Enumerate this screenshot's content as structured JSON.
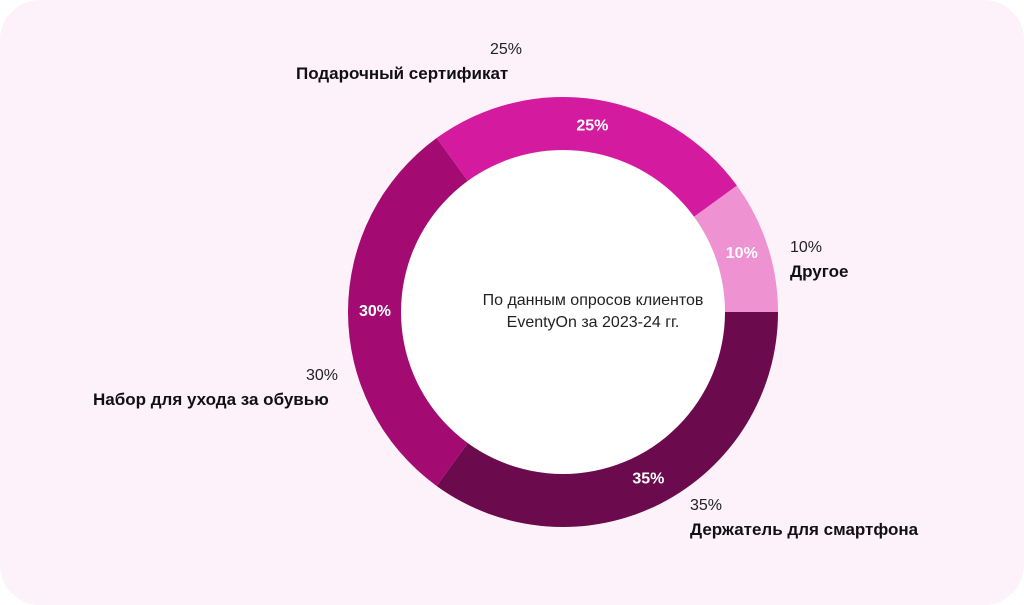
{
  "chart_data": {
    "type": "pie",
    "donut": true,
    "center_text": [
      "По данным опросов клиентов",
      "EventyOn за 2023-24 гг."
    ],
    "slices": [
      {
        "name": "Держатель для смартфона",
        "value": 35,
        "label": "35%",
        "color": "#6b0a4c"
      },
      {
        "name": "Набор для ухода за обувью",
        "value": 30,
        "label": "30%",
        "color": "#a30a72"
      },
      {
        "name": "Подарочный сертификат",
        "value": 25,
        "label": "25%",
        "color": "#d41a9e"
      },
      {
        "name": "Другое",
        "value": 10,
        "label": "10%",
        "color": "#ee92d1"
      }
    ]
  },
  "legend": {
    "gift": {
      "pct": "25%",
      "name": "Подарочный сертификат"
    },
    "other": {
      "pct": "10%",
      "name": "Другое"
    },
    "shoe": {
      "pct": "30%",
      "name": "Набор для ухода за обувью"
    },
    "phone": {
      "pct": "35%",
      "name": "Держатель для смартфона"
    }
  },
  "colors": {
    "background": "#fdf1fa",
    "inner": "#ffffff"
  }
}
